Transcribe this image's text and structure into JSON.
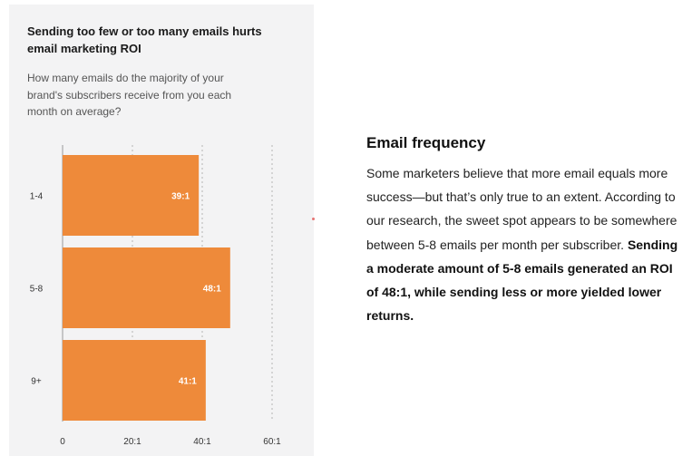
{
  "card": {
    "title": "Sending too few or too many emails hurts email marketing ROI",
    "subtitle": "How many emails do the majority of your brand's subscribers receive from you each month on average?"
  },
  "chart_data": {
    "type": "bar",
    "orientation": "horizontal",
    "categories": [
      "1-4",
      "5-8",
      "9+"
    ],
    "values": [
      39,
      48,
      41
    ],
    "data_labels": [
      "39:1",
      "48:1",
      "41:1"
    ],
    "xticks": [
      0,
      20,
      40,
      60
    ],
    "xtick_labels": [
      "0",
      "20:1",
      "40:1",
      "60:1"
    ],
    "xlim": [
      0,
      60
    ],
    "grid": "vertical dashed",
    "bar_color": "#ee8a3a",
    "title": "",
    "xlabel": "",
    "ylabel": ""
  },
  "article": {
    "heading": "Email frequency",
    "text_plain": "Some marketers believe that more email equals more success—but that’s only true to an extent. According to our research, the sweet spot appears to be somewhere between 5-8 emails per month per subscriber.",
    "text_bold": "Sending a moderate amount of 5-8 emails generated an ROI of 48:1, while sending less or more yielded lower returns."
  }
}
